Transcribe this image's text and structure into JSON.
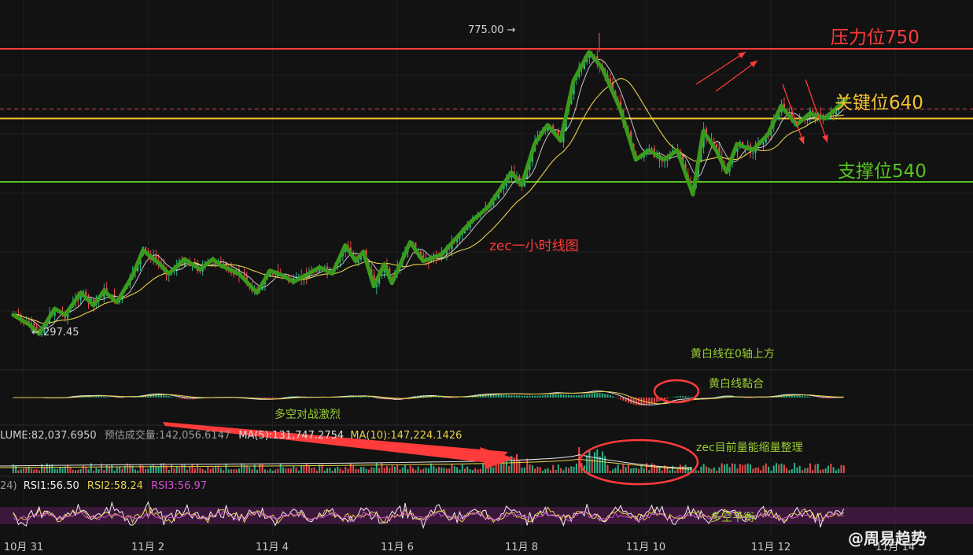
{
  "chart_data": {
    "type": "candlestick",
    "title": "zec一小时线图",
    "x_ticks": [
      "10月 31",
      "11月 2",
      "11月 4",
      "11月 6",
      "11月 8",
      "11月 10",
      "11月 12",
      "11月 14"
    ],
    "levels": [
      {
        "label": "压力位750",
        "value": 750,
        "color": "#ff3b3b"
      },
      {
        "label": "关键位640",
        "value": 640,
        "color": "#f2c230"
      },
      {
        "label": "支撑位540",
        "value": 540,
        "color": "#58c322"
      }
    ],
    "current_price_dashed": 655,
    "price_high": {
      "label": "775.00",
      "value": 775.0
    },
    "price_low": {
      "label": "297.45",
      "value": 297.45
    },
    "close_path": [
      [
        "10-30 20:00",
        330
      ],
      [
        "10-31 02:00",
        315
      ],
      [
        "10-31 06:00",
        300
      ],
      [
        "10-31 12:00",
        340
      ],
      [
        "10-31 16:00",
        330
      ],
      [
        "10-31 22:00",
        365
      ],
      [
        "11-01 03:00",
        345
      ],
      [
        "11-01 07:00",
        368
      ],
      [
        "11-01 12:00",
        350
      ],
      [
        "11-01 18:00",
        392
      ],
      [
        "11-01 22:00",
        432
      ],
      [
        "11-02 04:00",
        412
      ],
      [
        "11-02 08:00",
        395
      ],
      [
        "11-02 14:00",
        418
      ],
      [
        "11-02 20:00",
        402
      ],
      [
        "11-03 01:00",
        418
      ],
      [
        "11-03 04:00",
        408
      ],
      [
        "11-03 11:00",
        395
      ],
      [
        "11-03 18:00",
        365
      ],
      [
        "11-03 23:00",
        400
      ],
      [
        "11-04 04:00",
        392
      ],
      [
        "11-04 08:00",
        382
      ],
      [
        "11-04 13:00",
        393
      ],
      [
        "11-04 18:00",
        405
      ],
      [
        "11-04 23:00",
        395
      ],
      [
        "11-05 04:00",
        440
      ],
      [
        "11-05 08:00",
        415
      ],
      [
        "11-05 11:00",
        430
      ],
      [
        "11-05 15:00",
        375
      ],
      [
        "11-05 19:00",
        410
      ],
      [
        "11-05 22:00",
        380
      ],
      [
        "11-06 05:00",
        445
      ],
      [
        "11-06 10:00",
        415
      ],
      [
        "11-06 17:00",
        425
      ],
      [
        "11-07 04:00",
        475
      ],
      [
        "11-07 11:00",
        500
      ],
      [
        "11-07 16:00",
        530
      ],
      [
        "11-07 20:00",
        555
      ],
      [
        "11-08 00:00",
        535
      ],
      [
        "11-08 05:00",
        600
      ],
      [
        "11-08 10:00",
        630
      ],
      [
        "11-08 15:00",
        605
      ],
      [
        "11-08 20:00",
        700
      ],
      [
        "11-09 02:00",
        745
      ],
      [
        "11-09 07:00",
        720
      ],
      [
        "11-09 14:00",
        655
      ],
      [
        "11-09 20:00",
        575
      ],
      [
        "11-10 01:00",
        590
      ],
      [
        "11-10 07:00",
        575
      ],
      [
        "11-10 12:00",
        590
      ],
      [
        "11-10 18:00",
        520
      ],
      [
        "11-10 22:00",
        620
      ],
      [
        "11-11 03:00",
        590
      ],
      [
        "11-11 07:00",
        555
      ],
      [
        "11-11 11:00",
        600
      ],
      [
        "11-11 17:00",
        590
      ],
      [
        "11-11 23:00",
        615
      ],
      [
        "11-12 04:00",
        660
      ],
      [
        "11-12 10:00",
        630
      ],
      [
        "11-12 15:00",
        648
      ],
      [
        "11-12 21:00",
        640
      ],
      [
        "11-13 05:00",
        670
      ]
    ],
    "indicators": {
      "volume_label": "LUME:82,037.6950",
      "est_volume_label": "预估成交量:142,056.6147",
      "ma5_label": "MA(5):131,747.2754",
      "ma10_label": "MA(10):147,224.1426",
      "rsi_prefix": "24)",
      "rsi1_label": "RSI1:56.50",
      "rsi2_label": "RSI2:58.24",
      "rsi3_label": "RSI3:56.97"
    },
    "annotations": {
      "macd_above_zero": "黄白线在0轴上方",
      "macd_sticky": "黄白线黏合",
      "bull_bear_fight": "多空对战激烈",
      "volume_shrink": "zec目前量能缩量整理",
      "bull_bear_balance": "多空平衡"
    },
    "colors": {
      "up": "#2bb38a",
      "down": "#e84a4a",
      "ma_short": "#e6e6e6",
      "ma_long": "#e8d14a",
      "path": "#3a9a1c",
      "rsi_band": "#5a1f5a"
    }
  },
  "watermark": "@周易趋势"
}
